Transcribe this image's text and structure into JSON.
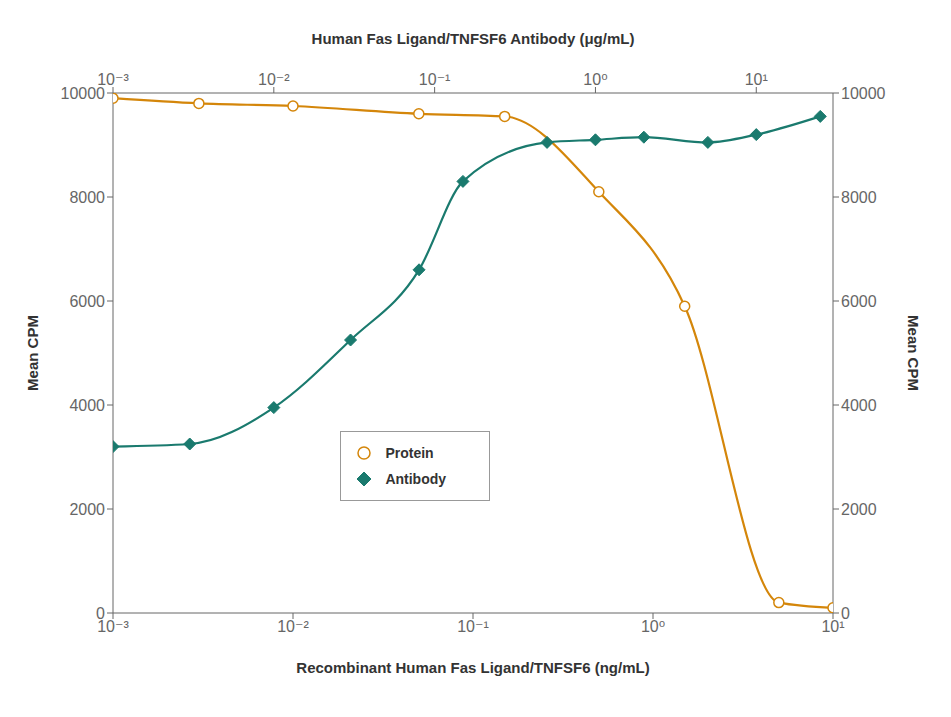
{
  "chart_data": {
    "type": "line",
    "xlabel": "Recombinant Human Fas Ligand/TNFSF6 (ng/mL)",
    "x2label": "Human Fas Ligand/TNFSF6 Antibody (μg/mL)",
    "ylabel": "Mean CPM",
    "y2label": "Mean CPM",
    "log": "x",
    "grid": false,
    "legend": "lower center",
    "xlim": [
      0.001,
      10.0
    ],
    "xticks": [
      {
        "value": 0.001,
        "label": "10⁻³"
      },
      {
        "value": 0.01,
        "label": "10⁻²"
      },
      {
        "value": 0.1,
        "label": "10⁻¹"
      },
      {
        "value": 1,
        "label": "10⁰"
      },
      {
        "value": 10,
        "label": "10¹"
      }
    ],
    "x2lim": [
      0.001,
      30.0
    ],
    "x2ticks": [
      {
        "value": 0.001,
        "label": "10⁻³"
      },
      {
        "value": 0.01,
        "label": "10⁻²"
      },
      {
        "value": 0.1,
        "label": "10⁻¹"
      },
      {
        "value": 1,
        "label": "10⁰"
      },
      {
        "value": 10,
        "label": "10¹"
      }
    ],
    "ylim": [
      0,
      10000
    ],
    "yticks": [
      0,
      2000,
      4000,
      6000,
      8000,
      10000
    ],
    "y2lim": [
      0,
      10000
    ],
    "y2ticks": [
      0,
      2000,
      4000,
      6000,
      8000,
      10000
    ],
    "series": [
      {
        "name": "Protein",
        "color": "#D4860A",
        "marker": "open_circle",
        "line_style": "solid",
        "axis": "x",
        "x": [
          0.001,
          0.003,
          0.01,
          0.05,
          0.15,
          0.5,
          1.5,
          5.0,
          10.0
        ],
        "values": [
          9900,
          9800,
          9750,
          9600,
          9550,
          8100,
          5900,
          200,
          100
        ]
      },
      {
        "name": "Antibody",
        "color": "#1A7A6E",
        "marker": "diamond",
        "line_style": "solid",
        "axis": "x2",
        "x": [
          0.001,
          0.003,
          0.01,
          0.03,
          0.08,
          0.15,
          0.5,
          1.0,
          2.0,
          5.0,
          10.0,
          25.0
        ],
        "values": [
          3200,
          3250,
          3950,
          5250,
          6600,
          8300,
          9050,
          9100,
          9150,
          9050,
          9200,
          9550
        ]
      }
    ]
  }
}
